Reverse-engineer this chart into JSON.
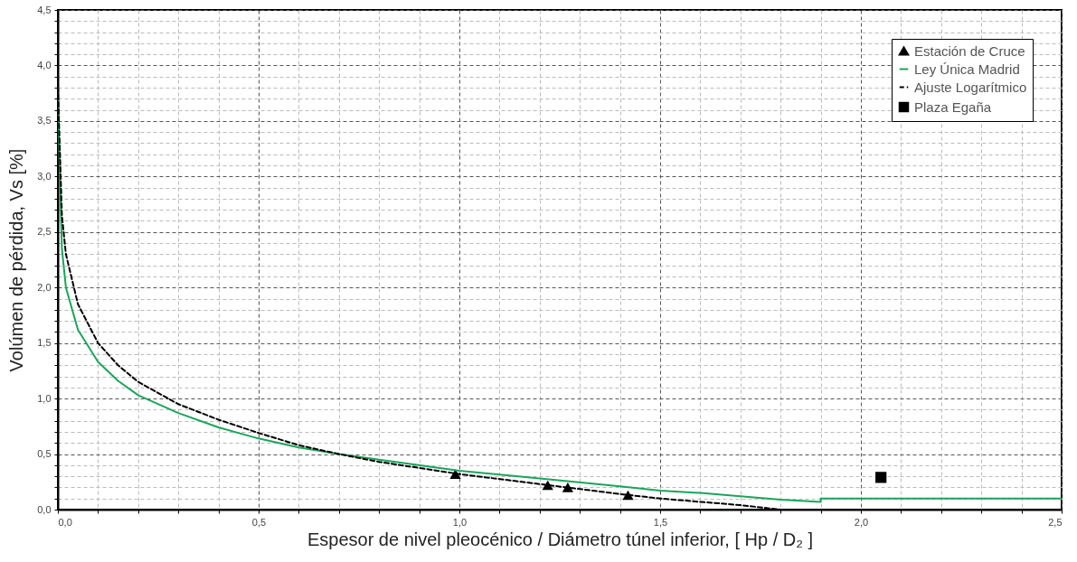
{
  "chart_data": {
    "type": "line",
    "xlabel": "Espesor de nivel pleocénico / Diámetro túnel inferior, [ Hp / D₂ ]",
    "ylabel": "Volúmen de pérdida, Vs [%]",
    "xlim": [
      0,
      2.5
    ],
    "ylim": [
      0,
      4.5
    ],
    "xticks": [
      {
        "value": 0,
        "label": "0,0"
      },
      {
        "value": 0.1,
        "label": null
      },
      {
        "value": 0.2,
        "label": null
      },
      {
        "value": 0.3,
        "label": null
      },
      {
        "value": 0.4,
        "label": null
      },
      {
        "value": 0.5,
        "label": "0,5"
      },
      {
        "value": 0.6,
        "label": null
      },
      {
        "value": 0.7,
        "label": null
      },
      {
        "value": 0.8,
        "label": null
      },
      {
        "value": 0.9,
        "label": null
      },
      {
        "value": 1,
        "label": "1,0"
      },
      {
        "value": 1.1,
        "label": null
      },
      {
        "value": 1.2,
        "label": null
      },
      {
        "value": 1.3,
        "label": null
      },
      {
        "value": 1.4,
        "label": null
      },
      {
        "value": 1.5,
        "label": "1,5"
      },
      {
        "value": 1.6,
        "label": null
      },
      {
        "value": 1.7,
        "label": null
      },
      {
        "value": 1.8,
        "label": null
      },
      {
        "value": 1.9,
        "label": null
      },
      {
        "value": 2,
        "label": "2,0"
      },
      {
        "value": 2.1,
        "label": null
      },
      {
        "value": 2.2,
        "label": null
      },
      {
        "value": 2.3,
        "label": null
      },
      {
        "value": 2.4,
        "label": null
      },
      {
        "value": 2.5,
        "label": "2,5"
      }
    ],
    "yticks": [
      {
        "value": 0,
        "label": "0,0"
      },
      {
        "value": 0.1,
        "label": null
      },
      {
        "value": 0.2,
        "label": null
      },
      {
        "value": 0.3,
        "label": null
      },
      {
        "value": 0.4,
        "label": null
      },
      {
        "value": 0.5,
        "label": "0,5"
      },
      {
        "value": 0.6,
        "label": null
      },
      {
        "value": 0.7,
        "label": null
      },
      {
        "value": 0.8,
        "label": null
      },
      {
        "value": 0.9,
        "label": null
      },
      {
        "value": 1,
        "label": "1,0"
      },
      {
        "value": 1.1,
        "label": null
      },
      {
        "value": 1.2,
        "label": null
      },
      {
        "value": 1.3,
        "label": null
      },
      {
        "value": 1.4,
        "label": null
      },
      {
        "value": 1.5,
        "label": "1,5"
      },
      {
        "value": 1.6,
        "label": null
      },
      {
        "value": 1.7,
        "label": null
      },
      {
        "value": 1.8,
        "label": null
      },
      {
        "value": 1.9,
        "label": null
      },
      {
        "value": 2,
        "label": "2,0"
      },
      {
        "value": 2.1,
        "label": null
      },
      {
        "value": 2.2,
        "label": null
      },
      {
        "value": 2.3,
        "label": null
      },
      {
        "value": 2.4,
        "label": null
      },
      {
        "value": 2.5,
        "label": "2,5"
      },
      {
        "value": 2.6,
        "label": null
      },
      {
        "value": 2.7,
        "label": null
      },
      {
        "value": 2.8,
        "label": null
      },
      {
        "value": 2.9,
        "label": null
      },
      {
        "value": 3,
        "label": "3,0"
      },
      {
        "value": 3.1,
        "label": null
      },
      {
        "value": 3.2,
        "label": null
      },
      {
        "value": 3.3,
        "label": null
      },
      {
        "value": 3.4,
        "label": null
      },
      {
        "value": 3.5,
        "label": "3,5"
      },
      {
        "value": 3.6,
        "label": null
      },
      {
        "value": 3.7,
        "label": null
      },
      {
        "value": 3.8,
        "label": null
      },
      {
        "value": 3.9,
        "label": null
      },
      {
        "value": 4,
        "label": "4,0"
      },
      {
        "value": 4.1,
        "label": null
      },
      {
        "value": 4.2,
        "label": null
      },
      {
        "value": 4.3,
        "label": null
      },
      {
        "value": 4.4,
        "label": null
      },
      {
        "value": 4.5,
        "label": "4,5"
      }
    ],
    "grid": true,
    "legend": "top right",
    "series": [
      {
        "name": "Estación de Cruce",
        "type": "scatter",
        "marker": "triangle",
        "color": "#000000",
        "x": [
          0.99,
          1.22,
          1.27,
          1.42
        ],
        "values": [
          0.32,
          0.22,
          0.2,
          0.13
        ]
      },
      {
        "name": "Ley Única Madrid",
        "type": "line",
        "line_style": "solid",
        "color": "#1aa55a",
        "x": [
          0,
          0.01,
          0.02,
          0.05,
          0.1,
          0.15,
          0.2,
          0.3,
          0.4,
          0.5,
          0.6,
          0.7,
          0.8,
          1.0,
          1.2,
          1.4,
          1.5,
          1.6,
          1.8,
          1.9,
          1.9,
          2.5
        ],
        "values": [
          3.7,
          2.35,
          2.0,
          1.62,
          1.33,
          1.16,
          1.03,
          0.87,
          0.74,
          0.64,
          0.56,
          0.5,
          0.45,
          0.35,
          0.28,
          0.21,
          0.17,
          0.15,
          0.09,
          0.07,
          0.1,
          0.1
        ]
      },
      {
        "name": "Ajuste Logarítmico",
        "type": "line",
        "line_style": "dashed",
        "color": "#000000",
        "x": [
          0,
          0.01,
          0.02,
          0.05,
          0.1,
          0.15,
          0.2,
          0.3,
          0.4,
          0.5,
          0.6,
          0.7,
          0.8,
          1.0,
          1.2,
          1.4,
          1.5,
          1.6,
          1.7,
          1.8
        ],
        "values": [
          3.8,
          2.65,
          2.3,
          1.85,
          1.5,
          1.3,
          1.15,
          0.95,
          0.81,
          0.69,
          0.58,
          0.5,
          0.43,
          0.32,
          0.23,
          0.14,
          0.1,
          0.07,
          0.04,
          0.0
        ]
      },
      {
        "name": "Plaza Egaña",
        "type": "scatter",
        "marker": "square",
        "color": "#000000",
        "x": [
          2.05
        ],
        "values": [
          0.29
        ]
      }
    ]
  }
}
